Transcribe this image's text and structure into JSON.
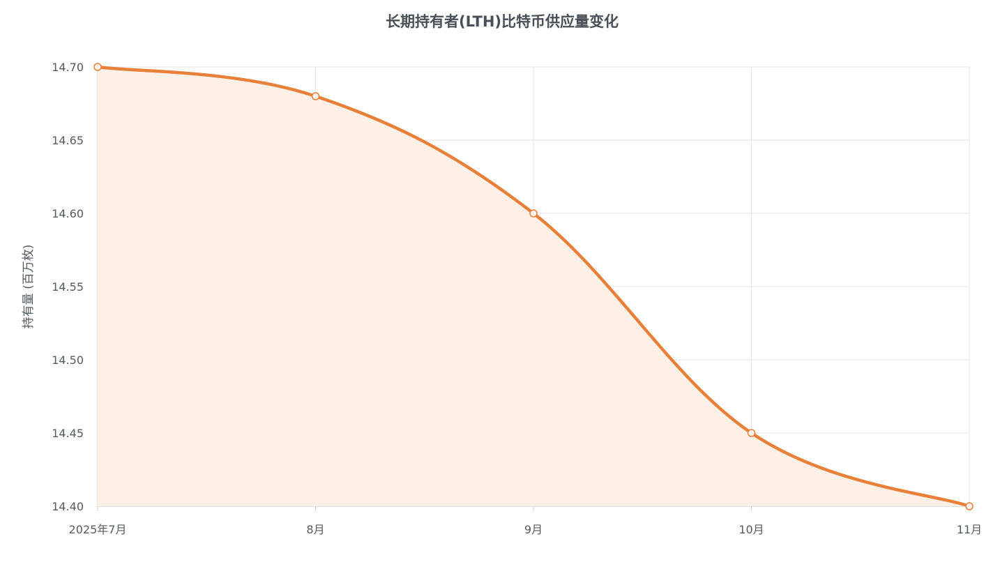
{
  "chart_data": {
    "type": "area",
    "title": "长期持有者(LTH)比特币供应量变化",
    "xlabel": "",
    "ylabel": "持有量 (百万枚)",
    "categories": [
      "2025年7月",
      "8月",
      "9月",
      "10月",
      "11月"
    ],
    "series": [
      {
        "values": [
          14.7,
          14.68,
          14.6,
          14.45,
          14.4
        ]
      }
    ],
    "ylim": [
      14.4,
      14.7
    ],
    "yticks": [
      "14.40",
      "14.45",
      "14.50",
      "14.55",
      "14.60",
      "14.65",
      "14.70"
    ],
    "grid": true,
    "legend": "none",
    "colors": {
      "line": "#e8803a",
      "fill": "#fcf0e7",
      "grid": "#e3e3e3",
      "axis": "#cfcfcf",
      "text": "#555a61",
      "title": "#4a4f57"
    }
  }
}
